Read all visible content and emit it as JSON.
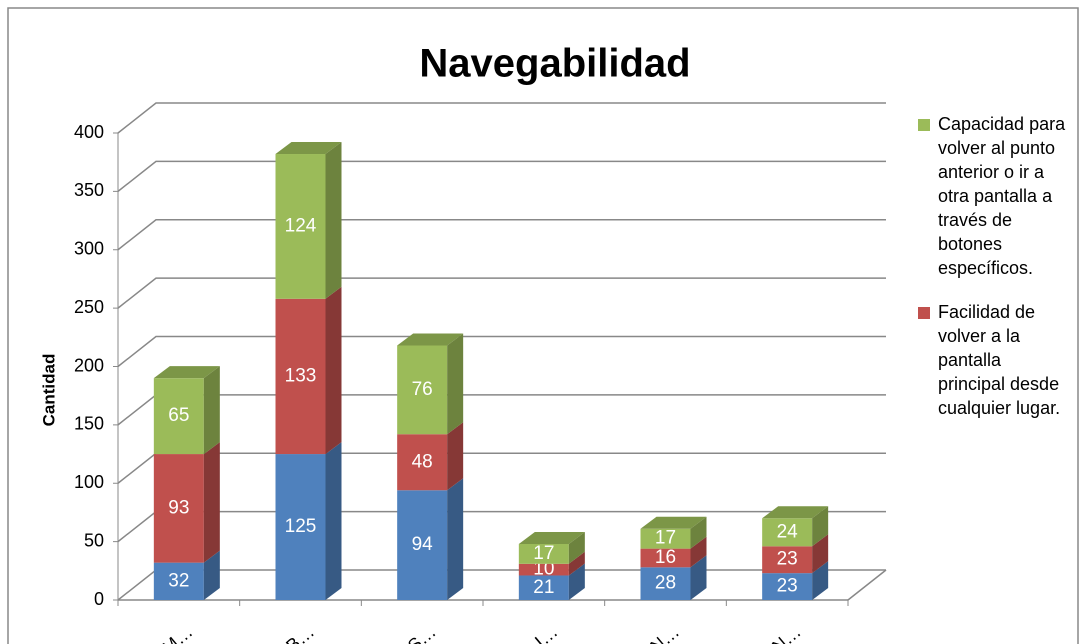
{
  "chart_data": {
    "type": "bar3d_stacked",
    "title": "Navegabilidad",
    "y_label": "Cantidad",
    "categories": [
      "M…",
      "B…",
      "S…",
      "I…",
      "N…",
      "N…"
    ],
    "series": [
      {
        "color": "#4f81bd",
        "values": [
          32,
          125,
          94,
          21,
          28,
          23
        ]
      },
      {
        "name": "Facilidad de volver a la pantalla principal desde cualquier lugar.",
        "color": "#c0504d",
        "values": [
          93,
          133,
          48,
          10,
          16,
          23
        ]
      },
      {
        "name": "Capacidad para volver al punto anterior o ir a otra pantalla a través de botones específicos.",
        "color": "#9bbb59",
        "values": [
          65,
          124,
          76,
          17,
          17,
          24
        ]
      }
    ],
    "ylim": [
      0,
      400
    ],
    "yticks": [
      0,
      50,
      100,
      150,
      200,
      250,
      300,
      350,
      400
    ],
    "grid": true,
    "legend": "right"
  }
}
